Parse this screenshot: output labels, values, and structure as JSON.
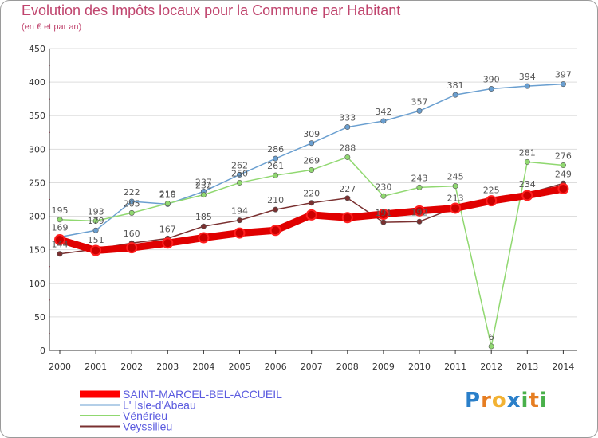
{
  "title": "Evolution des Impôts locaux pour la Commune par Habitant",
  "subtitle": "(en € et par an)",
  "logo": {
    "text": "Proxiti",
    "letters": [
      "P",
      "r",
      "o",
      "x",
      "i",
      "t",
      "i"
    ],
    "colors": [
      "#2a7fc9",
      "#e67e22",
      "#f2b233",
      "#2a7fc9",
      "#49b04a",
      "#e67e22",
      "#49b04a"
    ]
  },
  "chart_data": {
    "type": "line",
    "title": "Evolution des Impôts locaux pour la Commune par Habitant",
    "subtitle": "(en € et par an)",
    "x": [
      2000,
      2001,
      2002,
      2003,
      2004,
      2005,
      2006,
      2007,
      2008,
      2009,
      2010,
      2011,
      2012,
      2013,
      2014
    ],
    "ylim": [
      0,
      450
    ],
    "yticks": [
      0,
      50,
      100,
      150,
      200,
      250,
      300,
      350,
      400,
      450
    ],
    "grid": "horizontal",
    "legend_position": "bottom-left",
    "series": [
      {
        "name": "SAINT-MARCEL-BEL-ACCUEIL",
        "color": "#ff0000",
        "values": [
          165,
          149,
          153,
          160,
          168,
          175,
          179,
          202,
          198,
          203,
          208,
          212,
          223,
          231,
          241
        ],
        "labels_shown": [
          false,
          false,
          false,
          false,
          false,
          false,
          false,
          false,
          false,
          false,
          false,
          false,
          false,
          false,
          false
        ]
      },
      {
        "name": "L' Isle-d'Abeau",
        "color": "#6a9fd0",
        "values": [
          169,
          179,
          222,
          218,
          237,
          262,
          286,
          309,
          333,
          342,
          357,
          381,
          390,
          394,
          397
        ],
        "labels_shown": [
          true,
          true,
          true,
          true,
          true,
          true,
          true,
          true,
          true,
          true,
          true,
          true,
          true,
          true,
          true
        ]
      },
      {
        "name": "Vénérieu",
        "color": "#90d870",
        "values": [
          195,
          193,
          205,
          219,
          232,
          250,
          261,
          269,
          288,
          230,
          243,
          245,
          6,
          281,
          276
        ],
        "labels_shown": [
          true,
          true,
          true,
          true,
          true,
          true,
          true,
          true,
          true,
          true,
          true,
          true,
          true,
          true,
          true
        ]
      },
      {
        "name": "Veyssilieu",
        "color": "#7a3030",
        "values": [
          144,
          151,
          160,
          167,
          185,
          194,
          210,
          220,
          227,
          191,
          192,
          213,
          225,
          234,
          249
        ],
        "labels_shown": [
          true,
          true,
          true,
          true,
          true,
          true,
          true,
          true,
          true,
          true,
          true,
          true,
          true,
          true,
          true
        ]
      }
    ]
  }
}
